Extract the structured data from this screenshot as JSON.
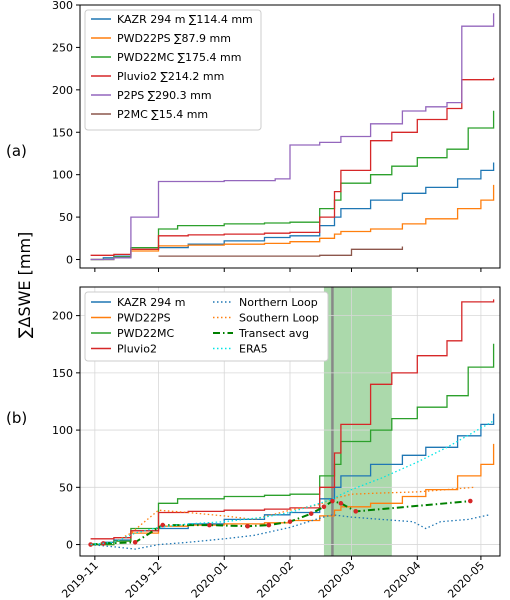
{
  "figure": {
    "ylabel": "∑ΔSWE [mm]",
    "panel_a_label": "(a)",
    "panel_b_label": "(b)"
  },
  "chart_data": [
    {
      "type": "line",
      "panel": "(a)",
      "ylim": [
        -10,
        300
      ],
      "yticks": [
        0,
        50,
        100,
        150,
        200,
        250,
        300
      ],
      "xlim": [
        "2019-10-25",
        "2020-05-10"
      ],
      "grid": false,
      "legend_position": "top-left",
      "series": [
        {
          "name": "KAZR 294 m ∑114.4 mm",
          "color": "#1f77b4",
          "x": [
            "2019-10-30",
            "2019-11-05",
            "2019-11-10",
            "2019-11-18",
            "2019-12-01",
            "2019-12-15",
            "2020-01-01",
            "2020-01-20",
            "2020-02-01",
            "2020-02-15",
            "2020-02-22",
            "2020-02-25",
            "2020-03-10",
            "2020-03-25",
            "2020-04-05",
            "2020-04-20",
            "2020-05-01",
            "2020-05-07"
          ],
          "y": [
            0,
            2,
            4,
            12,
            14,
            18,
            22,
            26,
            28,
            40,
            50,
            60,
            70,
            78,
            85,
            95,
            105,
            114.4
          ]
        },
        {
          "name": "PWD22PS ∑87.9 mm",
          "color": "#ff7f0e",
          "x": [
            "2019-10-30",
            "2019-11-10",
            "2019-11-18",
            "2019-12-01",
            "2019-12-15",
            "2020-01-01",
            "2020-01-20",
            "2020-02-01",
            "2020-02-15",
            "2020-02-22",
            "2020-02-25",
            "2020-03-10",
            "2020-03-25",
            "2020-04-05",
            "2020-04-20",
            "2020-05-01",
            "2020-05-07"
          ],
          "y": [
            0,
            3,
            10,
            16,
            17,
            18,
            19,
            21,
            25,
            30,
            33,
            36,
            42,
            48,
            60,
            70,
            87.9
          ]
        },
        {
          "name": "PWD22MC ∑175.4 mm",
          "color": "#2ca02c",
          "x": [
            "2019-10-30",
            "2019-11-10",
            "2019-11-18",
            "2019-12-01",
            "2019-12-10",
            "2020-01-01",
            "2020-01-20",
            "2020-02-01",
            "2020-02-15",
            "2020-02-22",
            "2020-02-25",
            "2020-03-10",
            "2020-03-20",
            "2020-04-01",
            "2020-04-15",
            "2020-04-25",
            "2020-05-07"
          ],
          "y": [
            0,
            3,
            14,
            36,
            40,
            42,
            43,
            44,
            60,
            70,
            90,
            100,
            110,
            120,
            130,
            155,
            175.4
          ]
        },
        {
          "name": "Pluvio2 ∑214.2 mm",
          "color": "#d62728",
          "x": [
            "2019-10-30",
            "2019-11-10",
            "2019-11-18",
            "2019-12-01",
            "2019-12-15",
            "2020-01-01",
            "2020-01-20",
            "2020-02-01",
            "2020-02-15",
            "2020-02-22",
            "2020-02-25",
            "2020-03-10",
            "2020-03-20",
            "2020-04-01",
            "2020-04-15",
            "2020-04-22",
            "2020-05-07"
          ],
          "y": [
            5,
            6,
            12,
            28,
            29,
            30,
            31,
            32,
            50,
            80,
            105,
            140,
            150,
            165,
            178,
            212,
            214.2
          ]
        },
        {
          "name": "P2PS ∑290.3 mm",
          "color": "#9467bd",
          "x": [
            "2019-10-30",
            "2019-11-10",
            "2019-11-18",
            "2019-12-01",
            "2020-01-01",
            "2020-01-25",
            "2020-02-01",
            "2020-02-15",
            "2020-02-25",
            "2020-03-10",
            "2020-03-25",
            "2020-04-05",
            "2020-04-15",
            "2020-04-22",
            "2020-05-07"
          ],
          "y": [
            0,
            2,
            50,
            92,
            93,
            95,
            135,
            138,
            145,
            160,
            175,
            180,
            185,
            275,
            290.3
          ]
        },
        {
          "name": "P2MC ∑15.4 mm",
          "color": "#8c564b",
          "x": [
            "2019-12-01",
            "2020-01-01",
            "2020-02-01",
            "2020-02-15",
            "2020-03-01",
            "2020-03-25"
          ],
          "y": [
            4,
            4,
            4,
            5,
            12,
            15.4
          ]
        }
      ]
    },
    {
      "type": "line",
      "panel": "(b)",
      "ylim": [
        -10,
        225
      ],
      "yticks": [
        0,
        50,
        100,
        150,
        200
      ],
      "xlim": [
        "2019-10-25",
        "2020-05-10"
      ],
      "xticks": [
        "2019-11",
        "2019-12",
        "2020-01",
        "2020-02",
        "2020-03",
        "2020-04",
        "2020-05"
      ],
      "grid": true,
      "legend_position": "top-left",
      "shaded_period": [
        "2020-02-17",
        "2020-03-20"
      ],
      "vertical_line": "2020-02-21",
      "series": [
        {
          "name": "KAZR 294 m",
          "color": "#1f77b4",
          "style": "solid",
          "x": [
            "2019-10-30",
            "2019-11-05",
            "2019-11-10",
            "2019-11-18",
            "2019-12-01",
            "2019-12-15",
            "2020-01-01",
            "2020-01-20",
            "2020-02-01",
            "2020-02-15",
            "2020-02-22",
            "2020-02-25",
            "2020-03-10",
            "2020-03-25",
            "2020-04-05",
            "2020-04-20",
            "2020-05-01",
            "2020-05-07"
          ],
          "y": [
            0,
            2,
            4,
            12,
            14,
            18,
            22,
            26,
            28,
            40,
            50,
            60,
            70,
            78,
            85,
            95,
            105,
            114.4
          ]
        },
        {
          "name": "PWD22PS",
          "color": "#ff7f0e",
          "style": "solid",
          "x": [
            "2019-10-30",
            "2019-11-10",
            "2019-11-18",
            "2019-12-01",
            "2019-12-15",
            "2020-01-01",
            "2020-01-20",
            "2020-02-01",
            "2020-02-15",
            "2020-02-22",
            "2020-02-25",
            "2020-03-10",
            "2020-03-25",
            "2020-04-05",
            "2020-04-20",
            "2020-05-01",
            "2020-05-07"
          ],
          "y": [
            0,
            3,
            10,
            16,
            17,
            18,
            19,
            21,
            25,
            30,
            33,
            36,
            42,
            48,
            60,
            70,
            87.9
          ]
        },
        {
          "name": "PWD22MC",
          "color": "#2ca02c",
          "style": "solid",
          "x": [
            "2019-10-30",
            "2019-11-10",
            "2019-11-18",
            "2019-12-01",
            "2019-12-10",
            "2020-01-01",
            "2020-01-20",
            "2020-02-01",
            "2020-02-15",
            "2020-02-22",
            "2020-02-25",
            "2020-03-10",
            "2020-03-20",
            "2020-04-01",
            "2020-04-15",
            "2020-04-25",
            "2020-05-07"
          ],
          "y": [
            0,
            3,
            14,
            36,
            40,
            42,
            43,
            44,
            60,
            70,
            90,
            100,
            110,
            120,
            130,
            155,
            175.4
          ]
        },
        {
          "name": "Pluvio2",
          "color": "#d62728",
          "style": "solid",
          "x": [
            "2019-10-30",
            "2019-11-10",
            "2019-11-18",
            "2019-12-01",
            "2019-12-15",
            "2020-01-01",
            "2020-01-20",
            "2020-02-01",
            "2020-02-15",
            "2020-02-22",
            "2020-02-25",
            "2020-03-10",
            "2020-03-20",
            "2020-04-01",
            "2020-04-15",
            "2020-04-22",
            "2020-05-07"
          ],
          "y": [
            5,
            6,
            12,
            28,
            29,
            30,
            31,
            32,
            50,
            80,
            105,
            140,
            150,
            165,
            178,
            212,
            214.2
          ]
        },
        {
          "name": "Northern Loop",
          "color": "#1f77b4",
          "style": "dotted",
          "x": [
            "2019-10-30",
            "2019-11-10",
            "2019-11-20",
            "2019-12-01",
            "2019-12-15",
            "2020-01-01",
            "2020-01-15",
            "2020-02-01",
            "2020-02-15",
            "2020-02-21",
            "2020-03-01",
            "2020-03-15",
            "2020-03-30",
            "2020-04-05",
            "2020-04-12",
            "2020-04-25",
            "2020-05-05"
          ],
          "y": [
            0,
            -2,
            -4,
            0,
            2,
            5,
            8,
            15,
            23,
            26,
            24,
            22,
            20,
            14,
            20,
            22,
            26
          ]
        },
        {
          "name": "Southern Loop",
          "color": "#ff7f0e",
          "style": "dotted",
          "x": [
            "2019-10-30",
            "2019-11-10",
            "2019-11-18",
            "2019-12-01",
            "2019-12-15",
            "2020-01-01",
            "2020-01-15",
            "2020-02-01",
            "2020-02-15",
            "2020-02-21",
            "2020-03-01",
            "2020-03-15",
            "2020-04-01",
            "2020-04-15",
            "2020-04-28"
          ],
          "y": [
            0,
            2,
            10,
            30,
            28,
            25,
            22,
            30,
            35,
            40,
            44,
            45,
            46,
            48,
            50
          ]
        },
        {
          "name": "Transect avg",
          "color": "#008000",
          "style": "dashdot",
          "markers": "#d62728",
          "x": [
            "2019-10-30",
            "2019-11-05",
            "2019-11-20",
            "2019-12-03",
            "2019-12-25",
            "2020-01-12",
            "2020-01-22",
            "2020-02-01",
            "2020-02-11",
            "2020-02-17",
            "2020-02-21",
            "2020-02-25",
            "2020-03-03",
            "2020-04-26"
          ],
          "y": [
            0,
            1,
            2,
            17,
            17,
            16,
            17,
            20,
            27,
            33,
            38,
            36,
            29,
            38
          ]
        },
        {
          "name": "ERA5",
          "color": "#00e5e5",
          "style": "dotted",
          "x": [
            "2019-10-30",
            "2019-11-10",
            "2019-11-20",
            "2019-12-01",
            "2019-12-15",
            "2020-01-01",
            "2020-01-20",
            "2020-02-01",
            "2020-02-15",
            "2020-02-21",
            "2020-03-01",
            "2020-03-15",
            "2020-04-01",
            "2020-04-15",
            "2020-05-07"
          ],
          "y": [
            0,
            2,
            10,
            15,
            18,
            20,
            24,
            28,
            36,
            40,
            48,
            58,
            72,
            85,
            108
          ]
        }
      ]
    }
  ]
}
